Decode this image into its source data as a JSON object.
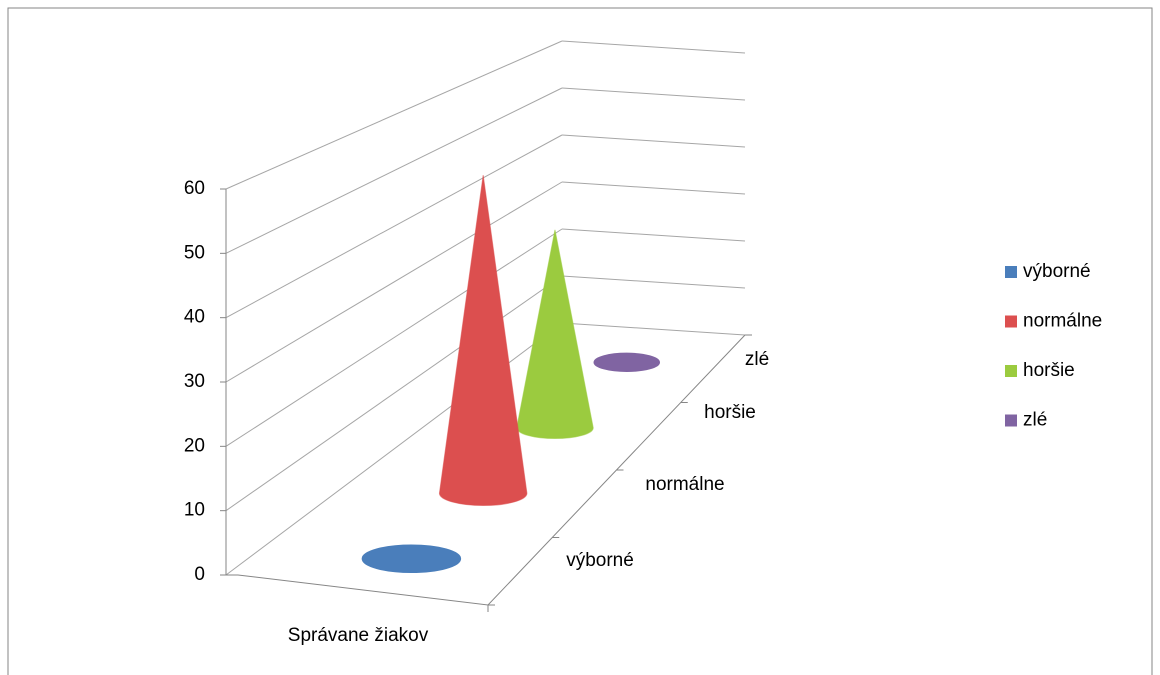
{
  "chart_data": {
    "type": "cone3d",
    "categories": [
      "Správane žiakov"
    ],
    "series": [
      {
        "name": "výborné",
        "color": "#4a7ebb",
        "values": [
          0
        ]
      },
      {
        "name": "normálne",
        "color": "#dc4f4f",
        "values": [
          55
        ]
      },
      {
        "name": "horšie",
        "color": "#9bcb3f",
        "values": [
          37
        ]
      },
      {
        "name": "zlé",
        "color": "#8064a2",
        "values": [
          0
        ]
      }
    ],
    "ylim": [
      0,
      60
    ],
    "yticks": [
      0,
      10,
      20,
      30,
      40,
      50,
      60
    ],
    "grid": true,
    "legend": "right"
  }
}
